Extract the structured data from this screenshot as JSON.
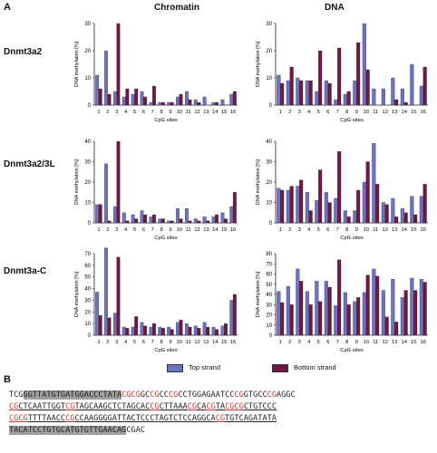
{
  "panel_labels": {
    "a": "A",
    "b": "B"
  },
  "column_titles": [
    "Chromatin",
    "DNA"
  ],
  "row_titles": [
    "Dnmt3a2",
    "Dnmt3a2/3L",
    "Dnmt3a-C"
  ],
  "legend": [
    {
      "label": "Top strand",
      "color": "#6a73c0"
    },
    {
      "label": "Bottom strand",
      "color": "#6e1845"
    }
  ],
  "colors": {
    "top": "#6a73c0",
    "bottom": "#6e1845",
    "cpg_red": "#d2332a",
    "primer_gray": "#9f9f9f"
  },
  "chart_data": [
    {
      "type": "bar",
      "title": "",
      "row": "Dnmt3a2",
      "column": "Chromatin",
      "xlabel": "CpG sites",
      "ylabel": "DNA methylation [%]",
      "categories": [
        "1",
        "2",
        "3",
        "4",
        "5",
        "6",
        "7",
        "8",
        "9",
        "10",
        "11",
        "12",
        "13",
        "14",
        "15",
        "16"
      ],
      "ylim": [
        0,
        30
      ],
      "yticks": [
        0,
        10,
        20,
        30
      ],
      "series": [
        {
          "name": "Top strand",
          "values": [
            11,
            20,
            5,
            3,
            4,
            5,
            1,
            1,
            1,
            3,
            5,
            2,
            3,
            1,
            2,
            4
          ]
        },
        {
          "name": "Bottom strand",
          "values": [
            6,
            4,
            30,
            6,
            6,
            3,
            7,
            1,
            1,
            4,
            2,
            1,
            0,
            1,
            0,
            5
          ]
        }
      ]
    },
    {
      "type": "bar",
      "title": "",
      "row": "Dnmt3a2",
      "column": "DNA",
      "xlabel": "CpG sites",
      "ylabel": "DNA methylation [%]",
      "categories": [
        "1",
        "2",
        "3",
        "4",
        "5",
        "6",
        "7",
        "8",
        "9",
        "10",
        "11",
        "12",
        "13",
        "14",
        "15",
        "16"
      ],
      "ylim": [
        0,
        30
      ],
      "yticks": [
        0,
        10,
        20,
        30
      ],
      "series": [
        {
          "name": "Top strand",
          "values": [
            11,
            9,
            10,
            9,
            5,
            9,
            2,
            4,
            9,
            30,
            6,
            6,
            10,
            6,
            15,
            7
          ]
        },
        {
          "name": "Bottom strand",
          "values": [
            8,
            14,
            9,
            9,
            20,
            8,
            21,
            5,
            23,
            13,
            0,
            0,
            2,
            1,
            0,
            14
          ]
        }
      ]
    },
    {
      "type": "bar",
      "title": "",
      "row": "Dnmt3a2/3L",
      "column": "Chromatin",
      "xlabel": "CpG sites",
      "ylabel": "DNA methylation [%]",
      "categories": [
        "1",
        "2",
        "3",
        "4",
        "5",
        "6",
        "7",
        "8",
        "9",
        "10",
        "11",
        "12",
        "13",
        "14",
        "15",
        "16"
      ],
      "ylim": [
        0,
        40
      ],
      "yticks": [
        0,
        10,
        20,
        30,
        40
      ],
      "series": [
        {
          "name": "Top strand",
          "values": [
            9,
            29,
            8,
            5,
            4,
            6,
            3,
            2,
            1,
            7,
            7,
            2,
            3,
            3,
            5,
            8
          ]
        },
        {
          "name": "Bottom strand",
          "values": [
            9,
            1,
            40,
            1,
            2,
            4,
            4,
            2,
            1,
            2,
            1,
            1,
            1,
            4,
            2,
            15
          ]
        }
      ]
    },
    {
      "type": "bar",
      "title": "",
      "row": "Dnmt3a2/3L",
      "column": "DNA",
      "xlabel": "CpG sites",
      "ylabel": "DNA methylation [%]",
      "categories": [
        "1",
        "2",
        "3",
        "4",
        "5",
        "6",
        "7",
        "8",
        "9",
        "10",
        "11",
        "12",
        "13",
        "14",
        "15",
        "16"
      ],
      "ylim": [
        0,
        40
      ],
      "yticks": [
        0,
        10,
        20,
        30,
        40
      ],
      "series": [
        {
          "name": "Top strand",
          "values": [
            17,
            16,
            18,
            15,
            11,
            15,
            12,
            6,
            6,
            20,
            39,
            10,
            12,
            7,
            13,
            13
          ]
        },
        {
          "name": "Bottom strand",
          "values": [
            16,
            18,
            21,
            6,
            26,
            10,
            35,
            3,
            16,
            30,
            19,
            9,
            3,
            5,
            4,
            19
          ]
        }
      ]
    },
    {
      "type": "bar",
      "title": "",
      "row": "Dnmt3a-C",
      "column": "Chromatin",
      "xlabel": "CpG sites",
      "ylabel": "DNA methylation [%]",
      "categories": [
        "1",
        "2",
        "3",
        "4",
        "5",
        "6",
        "7",
        "8",
        "9",
        "10",
        "11",
        "12",
        "13",
        "14",
        "15",
        "16"
      ],
      "ylim": [
        0,
        70
      ],
      "yticks": [
        0,
        10,
        20,
        30,
        40,
        50,
        60,
        70
      ],
      "series": [
        {
          "name": "Top strand",
          "values": [
            37,
            75,
            19,
            7,
            7,
            11,
            7,
            7,
            7,
            11,
            10,
            8,
            11,
            7,
            8,
            30
          ]
        },
        {
          "name": "Bottom strand",
          "values": [
            17,
            15,
            67,
            6,
            16,
            8,
            10,
            6,
            5,
            13,
            7,
            6,
            7,
            5,
            10,
            35
          ]
        }
      ]
    },
    {
      "type": "bar",
      "title": "",
      "row": "Dnmt3a-C",
      "column": "DNA",
      "xlabel": "CpG sites",
      "ylabel": "DNA methylation [%]",
      "categories": [
        "1",
        "2",
        "3",
        "4",
        "5",
        "6",
        "7",
        "8",
        "9",
        "10",
        "11",
        "12",
        "13",
        "14",
        "15",
        "16"
      ],
      "ylim": [
        0,
        80
      ],
      "yticks": [
        0,
        10,
        20,
        30,
        40,
        50,
        60,
        70,
        80
      ],
      "series": [
        {
          "name": "Top strand",
          "values": [
            43,
            48,
            65,
            43,
            53,
            53,
            29,
            42,
            33,
            42,
            65,
            44,
            55,
            37,
            56,
            55
          ]
        },
        {
          "name": "Bottom strand",
          "values": [
            32,
            30,
            53,
            30,
            33,
            47,
            74,
            30,
            37,
            59,
            58,
            18,
            13,
            44,
            44,
            52
          ]
        }
      ]
    }
  ],
  "sequence": [
    [
      {
        "t": "TCG",
        "s": "n"
      },
      {
        "t": "GGTTATGTGATGGACCCTATA",
        "s": "g"
      },
      {
        "t": "CGCG",
        "s": "r"
      },
      {
        "t": "GC",
        "s": "n"
      },
      {
        "t": "CG",
        "s": "r"
      },
      {
        "t": "CC",
        "s": "n"
      },
      {
        "t": "CG",
        "s": "r"
      },
      {
        "t": "CCTGGAGAATCC",
        "s": "n"
      },
      {
        "t": "CG",
        "s": "r"
      },
      {
        "t": "GTG",
        "s": "n"
      },
      {
        "t": "CC",
        "s": "n"
      },
      {
        "t": "CG",
        "s": "r"
      },
      {
        "t": "AGGC",
        "s": "n"
      }
    ],
    [
      {
        "t": "CG",
        "s": "r"
      },
      {
        "t": "CTCAATTGGT",
        "s": "n"
      },
      {
        "t": "CG",
        "s": "r"
      },
      {
        "t": "TAGCAAGCTCTAGCAC",
        "s": "n"
      },
      {
        "t": "CG",
        "s": "r"
      },
      {
        "t": "CTTAAA",
        "s": "n"
      },
      {
        "t": "CG",
        "s": "r"
      },
      {
        "t": "CA",
        "s": "n"
      },
      {
        "t": "CG",
        "s": "r"
      },
      {
        "t": "TA",
        "s": "n"
      },
      {
        "t": "CGCG",
        "s": "r"
      },
      {
        "t": "CTGTCCC",
        "s": "n"
      }
    ],
    [
      {
        "t": "CGCG",
        "s": "r"
      },
      {
        "t": "TTTTAACC",
        "s": "n"
      },
      {
        "t": "CG",
        "s": "r"
      },
      {
        "t": "CCAAGGGGATTACTCCCTAGTCTCCAGGCA",
        "s": "n"
      },
      {
        "t": "CG",
        "s": "r"
      },
      {
        "t": "TGTCAGATATA",
        "s": "n"
      }
    ],
    [
      {
        "t": "TACATCCTGTGCATGTGTTGAACAG",
        "s": "g"
      },
      {
        "t": "CGAC",
        "s": "n"
      }
    ]
  ]
}
